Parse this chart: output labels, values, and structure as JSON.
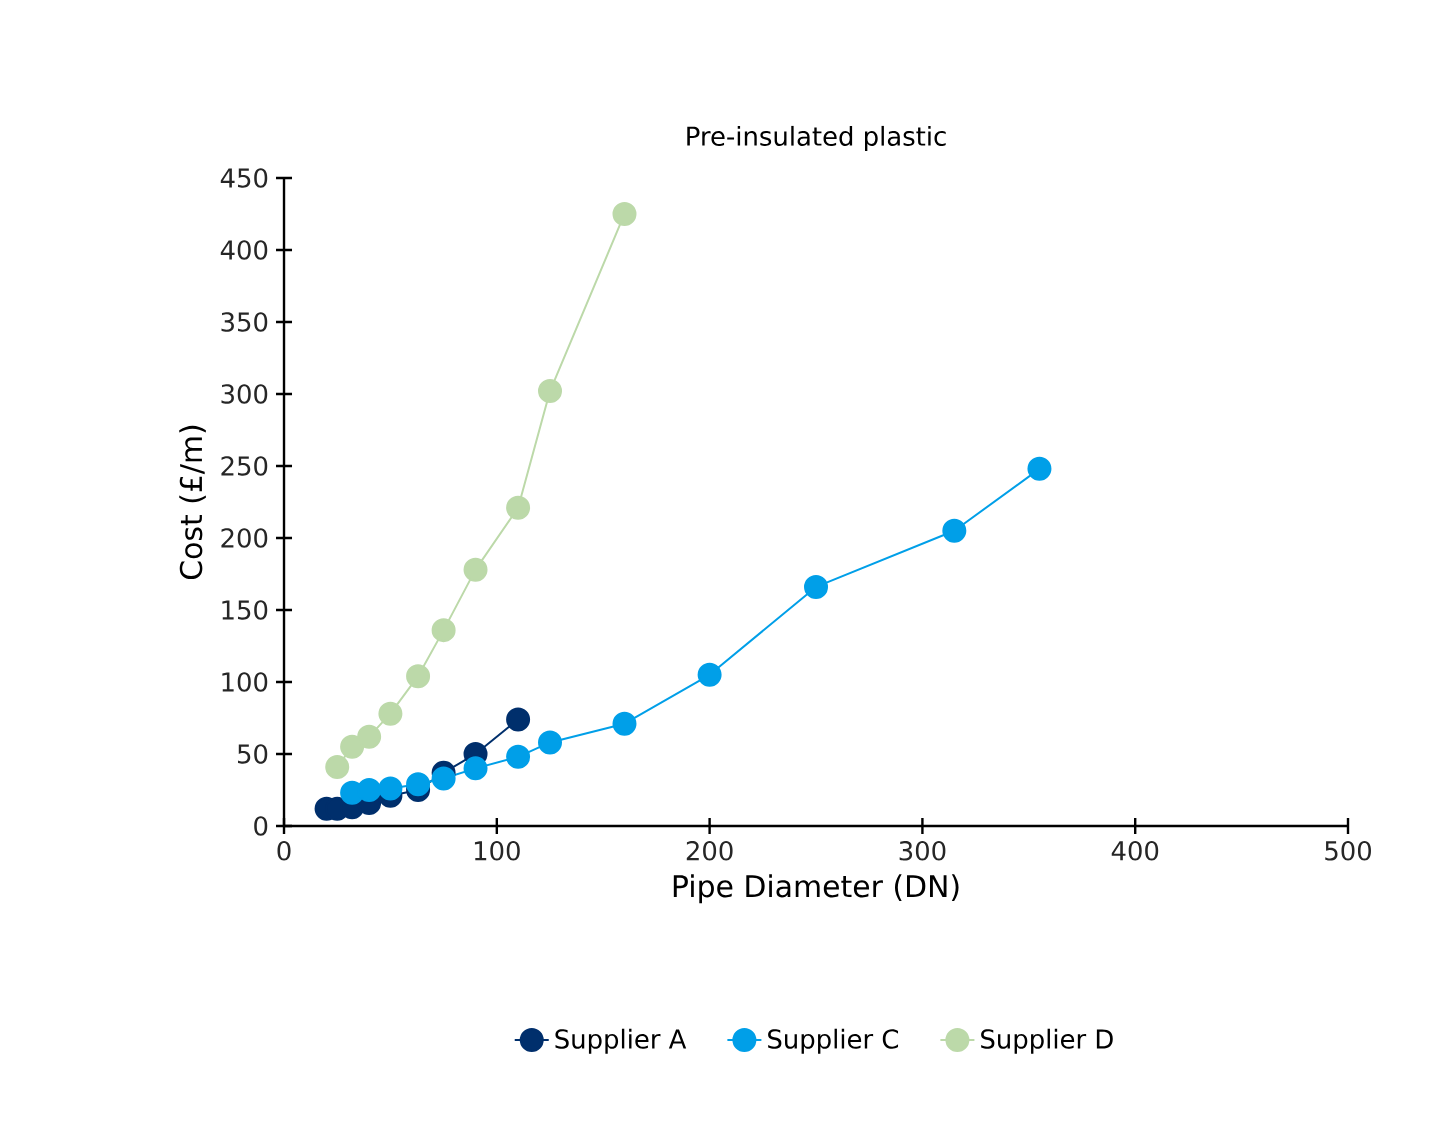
{
  "chart_data": {
    "type": "line",
    "title": "Pre-insulated plastic",
    "xlabel": "Pipe Diameter (DN)",
    "ylabel": "Cost (£/m)",
    "xlim": [
      0,
      500
    ],
    "xticks": [
      0,
      100,
      200,
      300,
      400,
      500
    ],
    "ylim": [
      0,
      450
    ],
    "yticks": [
      0,
      50,
      100,
      150,
      200,
      250,
      300,
      350,
      400,
      450
    ],
    "grid": false,
    "legend": "bottom",
    "marker": "circle",
    "line_style": "solid",
    "series": [
      {
        "name": "Supplier A",
        "color": "#002f6c",
        "x": [
          20,
          25,
          32,
          40,
          50,
          63,
          75,
          90,
          110
        ],
        "values": [
          12,
          12,
          13,
          16,
          21,
          25,
          37,
          50,
          74
        ]
      },
      {
        "name": "Supplier C",
        "color": "#009fe8",
        "x": [
          32,
          40,
          50,
          63,
          75,
          90,
          110,
          125,
          160,
          200,
          250,
          315,
          355
        ],
        "values": [
          23,
          25,
          26,
          29,
          33,
          40,
          48,
          58,
          71,
          105,
          166,
          205,
          248
        ]
      },
      {
        "name": "Supplier D",
        "color": "#bcd9a9",
        "x": [
          25,
          32,
          40,
          50,
          63,
          75,
          90,
          110,
          125,
          160
        ],
        "values": [
          41,
          55,
          62,
          78,
          104,
          136,
          178,
          221,
          302,
          425
        ]
      }
    ]
  }
}
